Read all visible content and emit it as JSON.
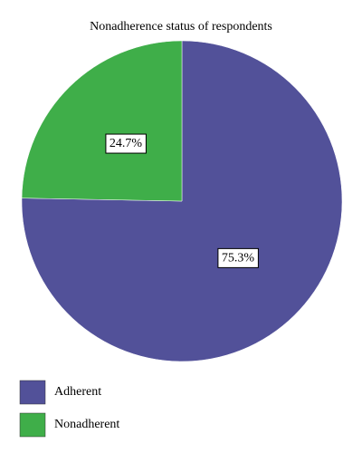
{
  "chart_data": {
    "type": "pie",
    "title": "Nonadherence status of respondents",
    "categories": [
      "Adherent",
      "Nonadherent"
    ],
    "values": [
      75.3,
      24.7
    ],
    "value_labels": [
      "75.3%",
      "24.7%"
    ],
    "colors": [
      "#525199",
      "#3fae49"
    ]
  }
}
